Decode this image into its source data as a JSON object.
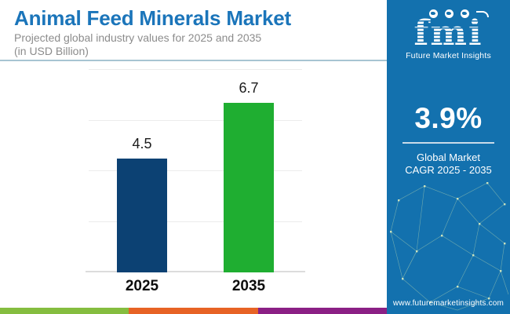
{
  "header": {
    "title": "Animal Feed Minerals Market",
    "subtitle_line1": "Projected global industry values for 2025 and 2035",
    "subtitle_line2": "(in USD Billion)",
    "title_color": "#1b75ba"
  },
  "chart_data": {
    "type": "bar",
    "categories": [
      "2025",
      "2035"
    ],
    "values": [
      4.5,
      6.7
    ],
    "value_labels": [
      "4.5",
      "6.7"
    ],
    "bar_colors": [
      "#0c4173",
      "#1fae31"
    ],
    "title": "Animal Feed Minerals Market",
    "xlabel": "",
    "ylabel": "",
    "ylim": [
      0,
      8
    ],
    "gridlines": [
      2,
      4,
      6,
      8
    ],
    "grid": "horizontal-light-gray",
    "legend": "none"
  },
  "sidebar": {
    "background_color": "#1371ae",
    "logo": {
      "text": "fmi",
      "subtext": "Future Market Insights"
    },
    "stat": {
      "value": "3.9%",
      "label_line1": "Global Market",
      "label_line2": "CAGR 2025 - 2035"
    },
    "website": "www.futuremarketinsights.com"
  },
  "footer_strip": {
    "colors": [
      "#85bd3f",
      "#e76325",
      "#8b2085"
    ]
  }
}
